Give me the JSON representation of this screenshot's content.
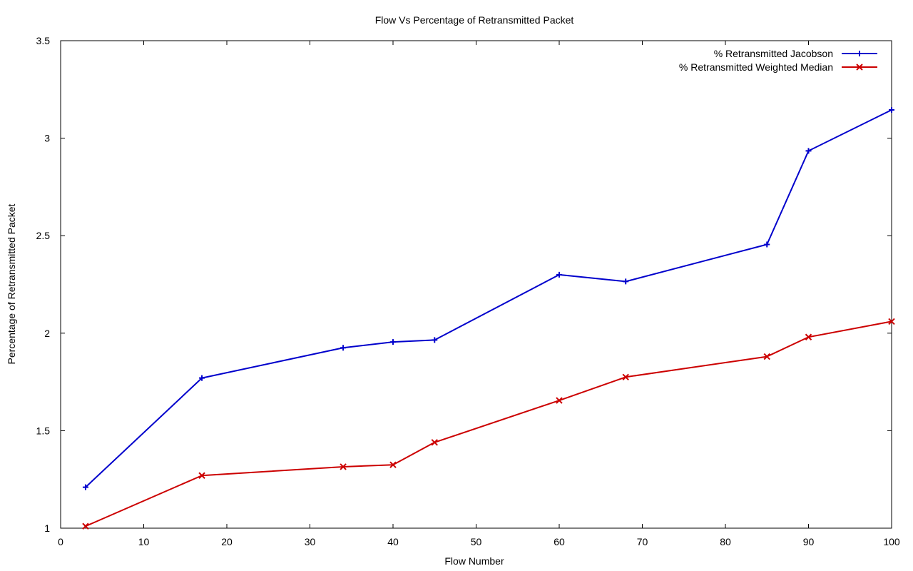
{
  "chart_data": {
    "type": "line",
    "title": "Flow Vs Percentage of Retransmitted Packet",
    "xlabel": "Flow Number",
    "ylabel": "Percentage of Retransmitted Packet",
    "xlim": [
      0,
      100
    ],
    "ylim": [
      1,
      3.5
    ],
    "xticks": [
      0,
      10,
      20,
      30,
      40,
      50,
      60,
      70,
      80,
      90,
      100
    ],
    "yticks": [
      1,
      1.5,
      2,
      2.5,
      3,
      3.5
    ],
    "ytick_labels": [
      "1",
      "1.5",
      "2",
      "2.5",
      "3",
      "3.5"
    ],
    "grid": false,
    "legend_position": "top-right",
    "series": [
      {
        "name": "% Retransmitted Jacobson",
        "color": "#0000cc",
        "marker": "plus",
        "x": [
          3,
          17,
          34,
          40,
          45,
          60,
          68,
          85,
          90,
          100
        ],
        "y": [
          1.21,
          1.77,
          1.925,
          1.955,
          1.965,
          2.3,
          2.265,
          2.455,
          2.935,
          3.145
        ]
      },
      {
        "name": "% Retransmitted Weighted Median",
        "color": "#cc0000",
        "marker": "cross",
        "x": [
          3,
          17,
          34,
          40,
          45,
          60,
          68,
          85,
          90,
          100
        ],
        "y": [
          1.01,
          1.27,
          1.315,
          1.325,
          1.44,
          1.655,
          1.775,
          1.88,
          1.98,
          2.06
        ]
      }
    ]
  }
}
